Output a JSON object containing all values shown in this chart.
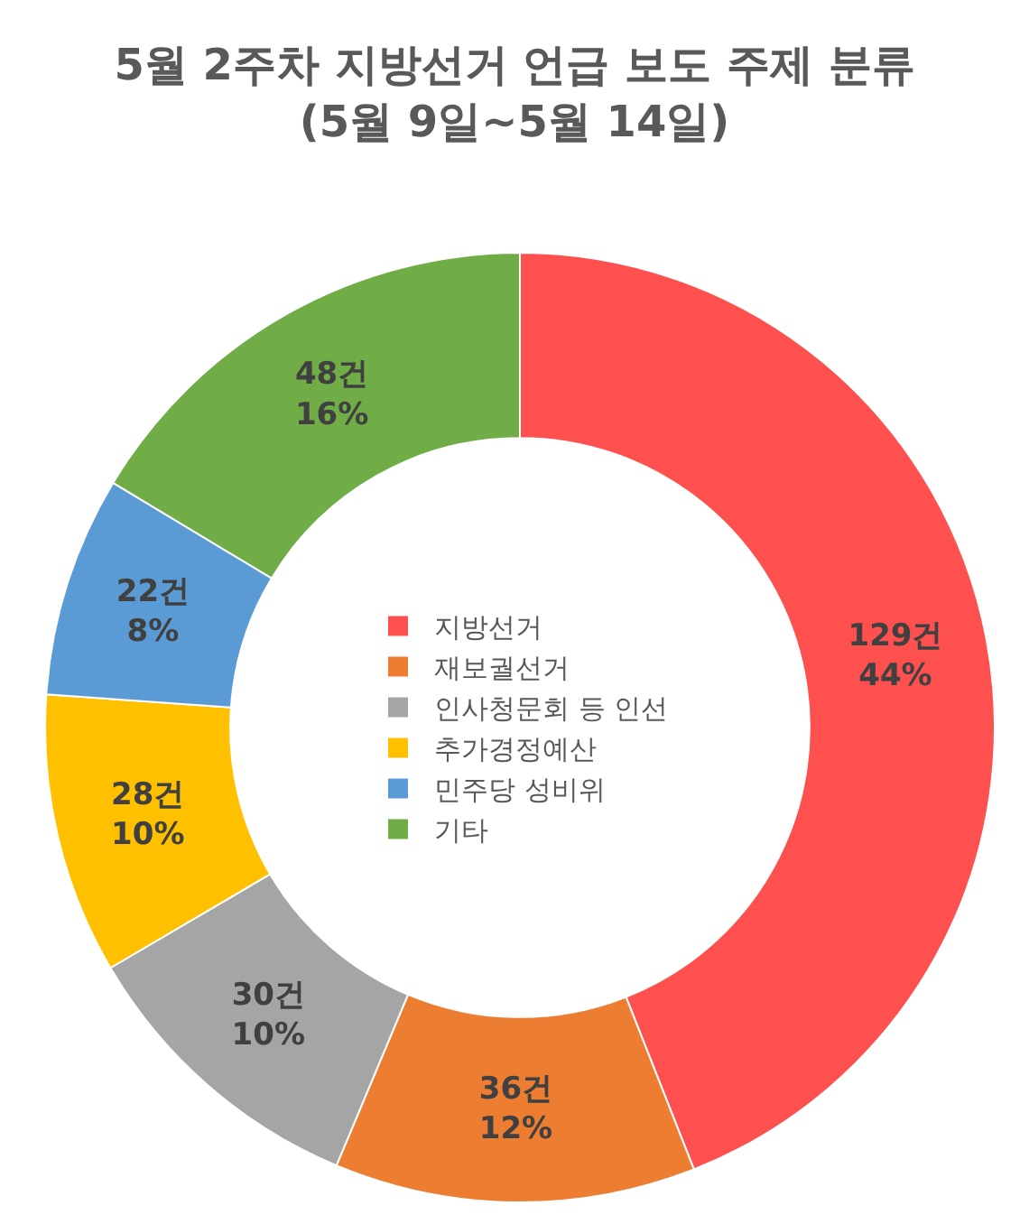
{
  "chart_data": {
    "type": "donut",
    "title": "5월 2주차 지방선거 언급 보도 주제 분류",
    "subtitle": "(5월 9일~5월 14일)",
    "categories": [
      "지방선거",
      "재보궐선거",
      "인사청문회 등 인선",
      "추가경정예산",
      "민주당 성비위",
      "기타"
    ],
    "values": [
      129,
      36,
      30,
      28,
      22,
      48
    ],
    "colors": [
      "#ff5050",
      "#ed7d31",
      "#a5a5a5",
      "#ffc000",
      "#5b9bd5",
      "#70ad47"
    ],
    "value_labels": [
      "129건\n44%",
      "36건\n12%",
      "30건\n10%",
      "28건\n10%",
      "22건\n8%",
      "48건\n16%"
    ],
    "legend": "center"
  }
}
